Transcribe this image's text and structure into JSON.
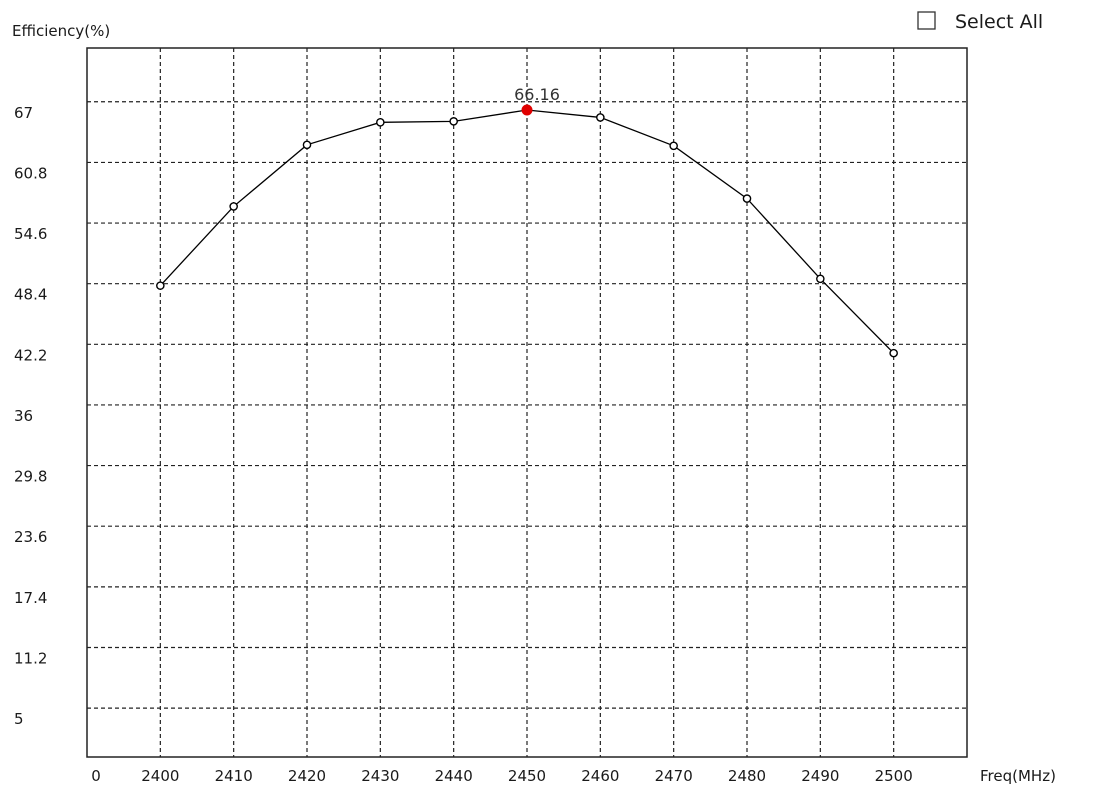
{
  "controls": {
    "select_all_label": "Select All",
    "select_all_checked": false
  },
  "chart_data": {
    "type": "line",
    "ylabel": "Efficiency(%)",
    "xlabel": "Freq(MHz)",
    "x_origin_label": "0",
    "xlim": [
      2390,
      2510
    ],
    "ylim": [
      0,
      72.5
    ],
    "x_ticks": [
      2400,
      2410,
      2420,
      2430,
      2440,
      2450,
      2460,
      2470,
      2480,
      2490,
      2500
    ],
    "y_ticks": [
      5,
      11.2,
      17.4,
      23.6,
      29.8,
      36,
      42.2,
      48.4,
      54.6,
      60.8,
      67
    ],
    "x_tick_labels": [
      "2400",
      "2410",
      "2420",
      "2430",
      "2440",
      "2450",
      "2460",
      "2470",
      "2480",
      "2490",
      "2500"
    ],
    "y_tick_labels": [
      "5",
      "11.2",
      "17.4",
      "23.6",
      "29.8",
      "36",
      "42.2",
      "48.4",
      "54.6",
      "60.8",
      "67"
    ],
    "grid": true,
    "series": [
      {
        "x": [
          2400,
          2410,
          2420,
          2430,
          2440,
          2450,
          2460,
          2470,
          2480,
          2490,
          2500
        ],
        "values": [
          48.2,
          56.3,
          62.6,
          64.9,
          65.0,
          66.16,
          65.4,
          62.5,
          57.1,
          48.9,
          41.3
        ],
        "color": "#000000"
      }
    ],
    "highlight": {
      "x": 2450,
      "value": 66.16,
      "label": "66.16",
      "color": "#e00000"
    }
  }
}
